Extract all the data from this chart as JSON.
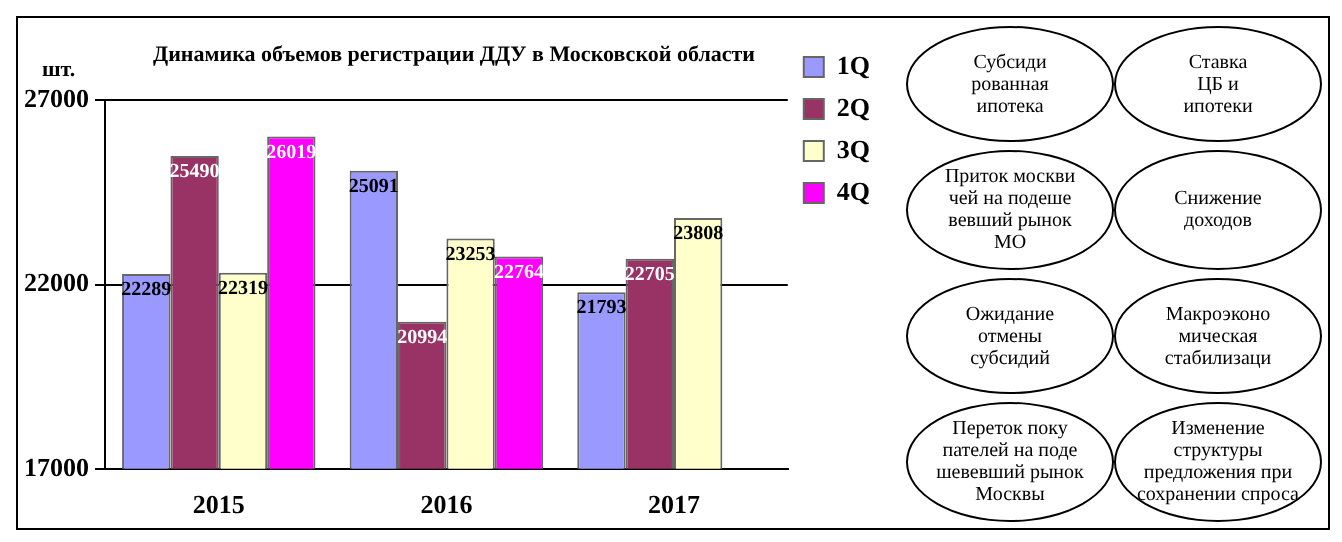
{
  "chart_data": {
    "type": "bar",
    "title": "Динамика объемов регистрации ДДУ в Московской области",
    "ylabel": "шт.",
    "categories": [
      "2015",
      "2016",
      "2017"
    ],
    "series": [
      {
        "name": "1Q",
        "color": "#9999ff",
        "values": [
          22289,
          25091,
          21793
        ]
      },
      {
        "name": "2Q",
        "color": "#993366",
        "values": [
          25490,
          20994,
          22705
        ]
      },
      {
        "name": "3Q",
        "color": "#ffffcc",
        "values": [
          22319,
          23253,
          23808
        ]
      },
      {
        "name": "4Q",
        "color": "#ff00ff",
        "values": [
          26019,
          22764,
          null
        ]
      }
    ],
    "ylim": [
      17000,
      27000
    ],
    "yticks": [
      17000,
      22000,
      27000
    ],
    "grid": "y",
    "legend": "right",
    "data_labels": true,
    "annotations": [
      "Субсиди\nрованная\nипотека",
      "Ставка\nЦБ и\nипотеки",
      "Приток москви\nчей на подеше\nвевший рынок\nМО",
      "Снижение\nдоходов",
      "Ожидание\nотмены\nсубсидий",
      "Макроэконо\nмическая\nстабилизаци",
      "Переток поку\nпателей на поде\nшевевший рынок\nМосквы",
      "Изменение\nструктуры\nпредложения при\nсохранении спроса"
    ]
  }
}
